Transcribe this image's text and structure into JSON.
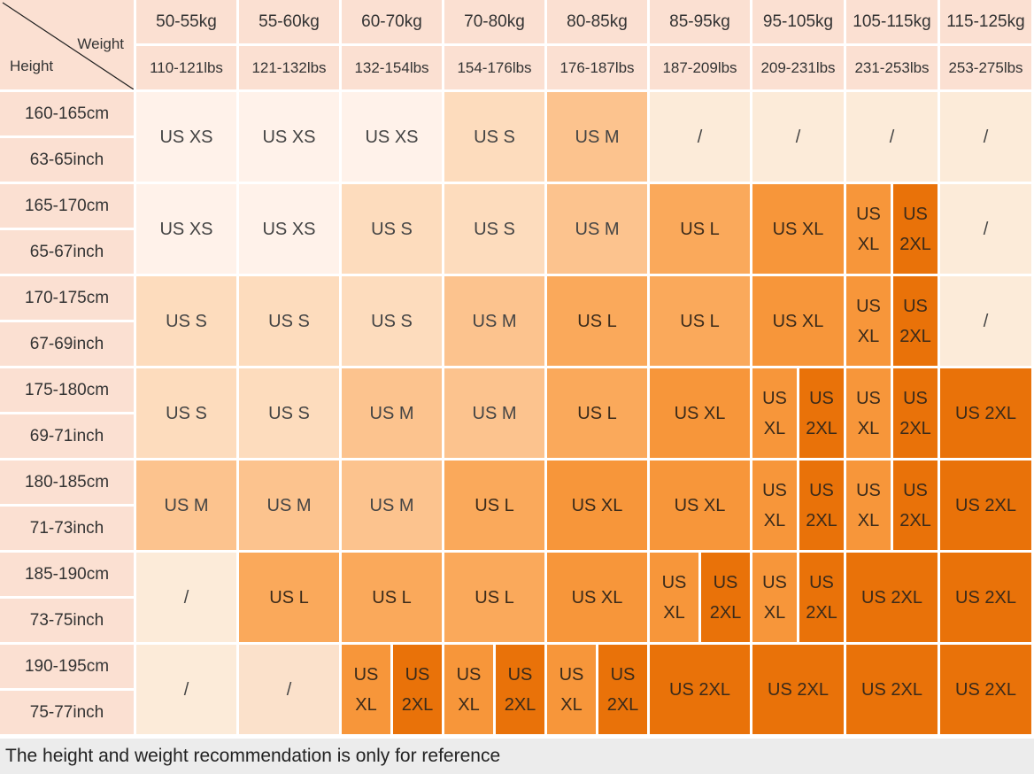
{
  "chart_data": {
    "type": "table",
    "corner": {
      "col_label": "Weight",
      "row_label": "Height"
    },
    "columns": [
      {
        "kg": "50-55kg",
        "lbs": "110-121lbs"
      },
      {
        "kg": "55-60kg",
        "lbs": "121-132lbs"
      },
      {
        "kg": "60-70kg",
        "lbs": "132-154lbs"
      },
      {
        "kg": "70-80kg",
        "lbs": "154-176lbs"
      },
      {
        "kg": "80-85kg",
        "lbs": "176-187lbs"
      },
      {
        "kg": "85-95kg",
        "lbs": "187-209lbs"
      },
      {
        "kg": "95-105kg",
        "lbs": "209-231lbs"
      },
      {
        "kg": "105-115kg",
        "lbs": "231-253lbs"
      },
      {
        "kg": "115-125kg",
        "lbs": "253-275lbs"
      }
    ],
    "rows": [
      {
        "cm": "160-165cm",
        "inch": "63-65inch",
        "cells": [
          [
            "US XS"
          ],
          [
            "US XS"
          ],
          [
            "US XS"
          ],
          [
            "US S"
          ],
          [
            "US M"
          ],
          [
            "/"
          ],
          [
            "/"
          ],
          [
            "/"
          ],
          [
            "/"
          ]
        ]
      },
      {
        "cm": "165-170cm",
        "inch": "65-67inch",
        "cells": [
          [
            "US XS"
          ],
          [
            "US XS"
          ],
          [
            "US S"
          ],
          [
            "US S"
          ],
          [
            "US M"
          ],
          [
            "US L"
          ],
          [
            "US XL"
          ],
          [
            "US XL",
            "US 2XL"
          ],
          [
            "/"
          ]
        ]
      },
      {
        "cm": "170-175cm",
        "inch": "67-69inch",
        "cells": [
          [
            "US S"
          ],
          [
            "US S"
          ],
          [
            "US S"
          ],
          [
            "US M"
          ],
          [
            "US L"
          ],
          [
            "US L"
          ],
          [
            "US XL"
          ],
          [
            "US XL",
            "US 2XL"
          ],
          [
            "/"
          ]
        ]
      },
      {
        "cm": "175-180cm",
        "inch": "69-71inch",
        "cells": [
          [
            "US S"
          ],
          [
            "US S"
          ],
          [
            "US M"
          ],
          [
            "US M"
          ],
          [
            "US L"
          ],
          [
            "US XL"
          ],
          [
            "US XL",
            "US 2XL"
          ],
          [
            "US XL",
            "US 2XL"
          ],
          [
            "US 2XL"
          ]
        ]
      },
      {
        "cm": "180-185cm",
        "inch": "71-73inch",
        "cells": [
          [
            "US M"
          ],
          [
            "US M"
          ],
          [
            "US M"
          ],
          [
            "US L"
          ],
          [
            "US XL"
          ],
          [
            "US XL"
          ],
          [
            "US XL",
            "US 2XL"
          ],
          [
            "US XL",
            "US 2XL"
          ],
          [
            "US 2XL"
          ]
        ]
      },
      {
        "cm": "185-190cm",
        "inch": "73-75inch",
        "cells": [
          [
            "/"
          ],
          [
            "US L"
          ],
          [
            "US L"
          ],
          [
            "US L"
          ],
          [
            "US XL"
          ],
          [
            "US XL",
            "US 2XL"
          ],
          [
            "US XL",
            "US 2XL"
          ],
          [
            "US 2XL"
          ],
          [
            "US 2XL"
          ]
        ]
      },
      {
        "cm": "190-195cm",
        "inch": "75-77inch",
        "cells": [
          [
            "/"
          ],
          [
            "/"
          ],
          [
            "US XL",
            "US 2XL"
          ],
          [
            "US XL",
            "US 2XL"
          ],
          [
            "US XL",
            "US 2XL"
          ],
          [
            "US 2XL"
          ],
          [
            "US 2XL"
          ],
          [
            "US 2XL"
          ],
          [
            "US 2XL"
          ]
        ]
      }
    ],
    "size_colors": {
      "US XS": "#fff2ea",
      "US S": "#fddcbd",
      "US M": "#fcc38e",
      "US L": "#faa95b",
      "US XL": "#f7963a",
      "US 2XL": "#e97209",
      "/ light": "#fcebd9",
      "/ dark": "#fbe1cb"
    }
  },
  "footer": {
    "note": "The height and weight recommendation is only for reference"
  }
}
